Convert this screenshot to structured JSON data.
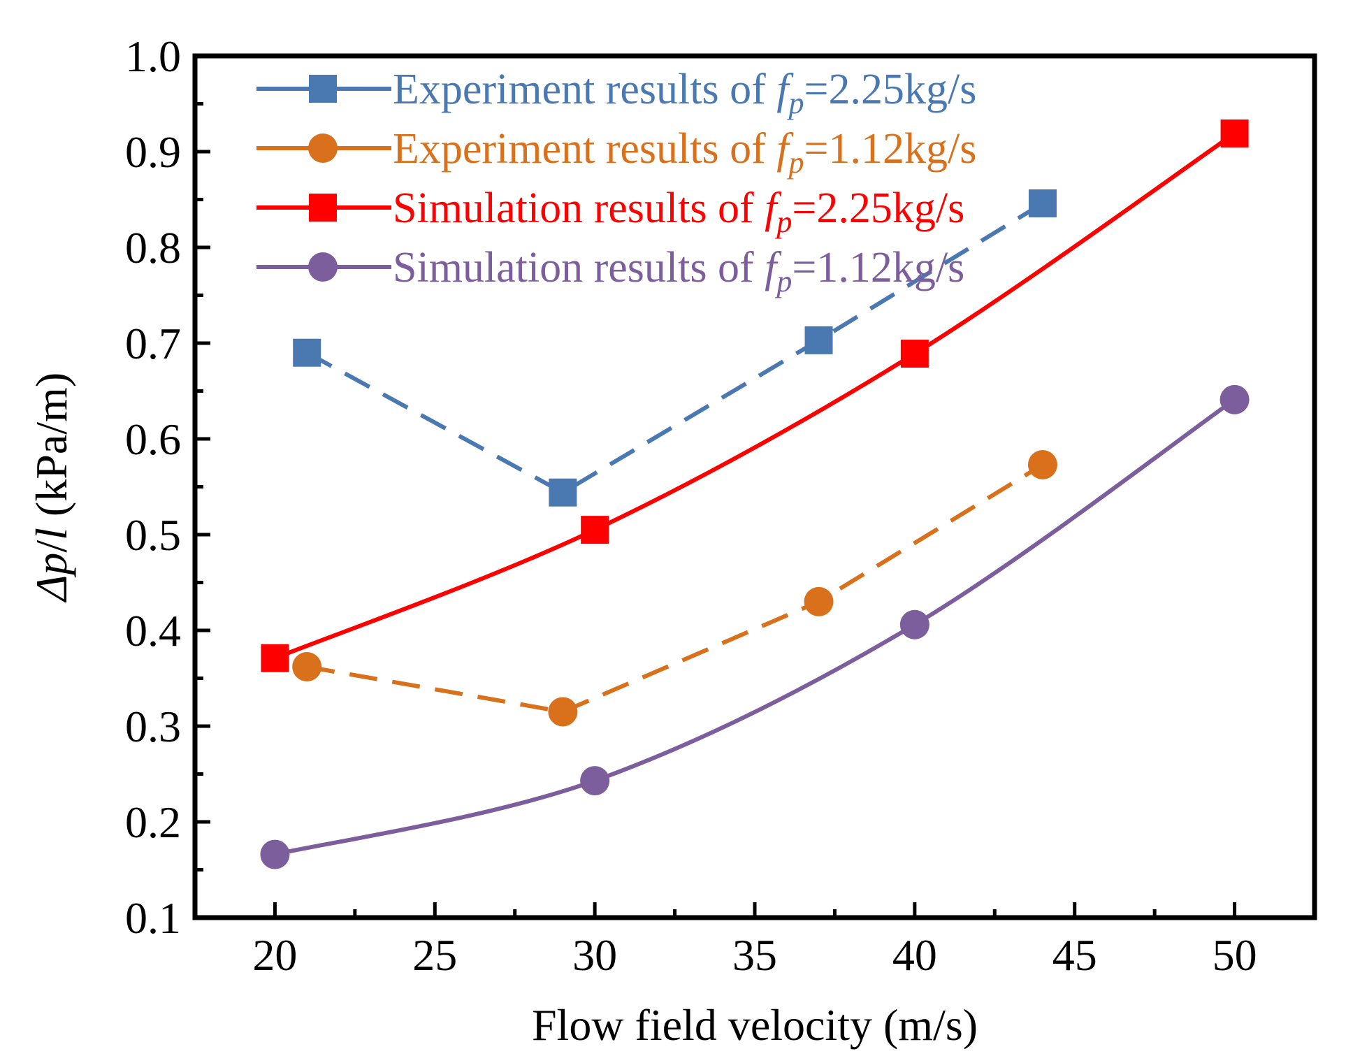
{
  "chart_data": {
    "type": "line",
    "title": "",
    "xlabel": "Flow field velocity (m/s)",
    "ylabel": "Δp/l (kPa/m)",
    "ylabel_parts": {
      "delta": "Δ",
      "p": "p",
      "slash": "/",
      "l": "l",
      "unit": " (kPa/m)"
    },
    "xlim": [
      17.5,
      52.5
    ],
    "ylim": [
      0.1,
      1.0
    ],
    "xticks": [
      20,
      25,
      30,
      35,
      40,
      45,
      50
    ],
    "xtick_labels": [
      "20",
      "25",
      "30",
      "35",
      "40",
      "45",
      "50"
    ],
    "yticks": [
      0.1,
      0.2,
      0.3,
      0.4,
      0.5,
      0.6,
      0.7,
      0.8,
      0.9,
      1.0
    ],
    "ytick_labels": [
      "0.1",
      "0.2",
      "0.3",
      "0.4",
      "0.5",
      "0.6",
      "0.7",
      "0.8",
      "0.9",
      "1.0"
    ],
    "grid": false,
    "legend_position": "top-left",
    "series": [
      {
        "name": "Experiment results of fp=2.25kg/s",
        "label_prefix": "Experiment results of ",
        "label_var": "f",
        "label_sub": "p",
        "label_suffix": "=2.25kg/s",
        "color": "#4a78b0",
        "marker": "square",
        "line_style": "dashed",
        "x": [
          21,
          29,
          37,
          44
        ],
        "y": [
          0.69,
          0.544,
          0.703,
          0.846
        ]
      },
      {
        "name": "Experiment results of fp=1.12kg/s",
        "label_prefix": "Experiment results of ",
        "label_var": "f",
        "label_sub": "p",
        "label_suffix": "=1.12kg/s",
        "color": "#d9711c",
        "marker": "circle",
        "line_style": "dashed",
        "x": [
          21,
          29,
          37,
          44
        ],
        "y": [
          0.362,
          0.315,
          0.43,
          0.573
        ]
      },
      {
        "name": "Simulation results of fp=2.25kg/s",
        "label_prefix": "Simulation results of ",
        "label_var": "f",
        "label_sub": "p",
        "label_suffix": "=2.25kg/s",
        "color": "#ff0000",
        "marker": "square",
        "line_style": "solid",
        "x": [
          20,
          30,
          40,
          50
        ],
        "y": [
          0.371,
          0.505,
          0.689,
          0.919
        ]
      },
      {
        "name": "Simulation results of fp=1.12kg/s",
        "label_prefix": "Simulation results of ",
        "label_var": "f",
        "label_sub": "p",
        "label_suffix": "=1.12kg/s",
        "color": "#7b5e9b",
        "marker": "circle",
        "line_style": "solid",
        "x": [
          20,
          30,
          40,
          50
        ],
        "y": [
          0.166,
          0.243,
          0.406,
          0.641
        ]
      }
    ]
  }
}
